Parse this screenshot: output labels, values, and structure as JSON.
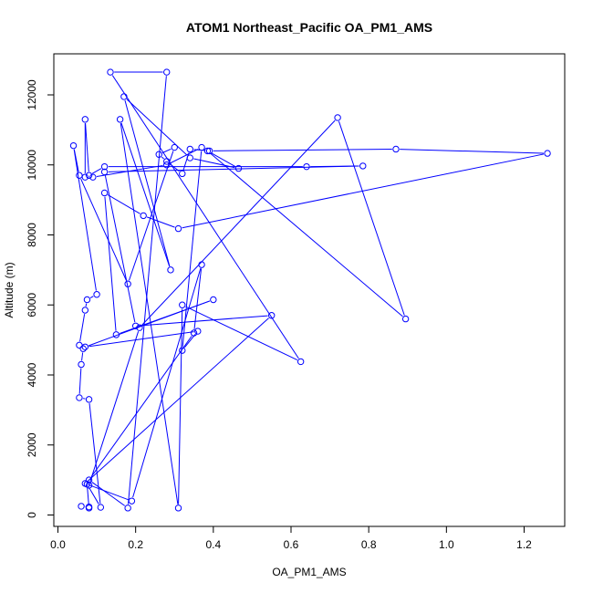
{
  "chart_data": {
    "type": "line",
    "title": "ATOM1 Northeast_Pacific OA_PM1_AMS",
    "xlabel": "OA_PM1_AMS",
    "ylabel": "Altitude (m)",
    "xlim": [
      0.0,
      1.3
    ],
    "ylim": [
      0,
      12700
    ],
    "x_ticks": [
      0.0,
      0.2,
      0.4,
      0.6,
      0.8,
      1.0,
      1.2
    ],
    "x_tick_labels": [
      "0.0",
      "0.2",
      "0.4",
      "0.6",
      "0.8",
      "1.0",
      "1.2"
    ],
    "y_ticks": [
      0,
      2000,
      4000,
      6000,
      8000,
      10000,
      12000
    ],
    "y_tick_labels": [
      "0",
      "2000",
      "4000",
      "6000",
      "8000",
      "10000",
      "12000"
    ],
    "grid": false,
    "series": [
      {
        "color": "#0000ff",
        "marker": "open-circle",
        "points": [
          [
            0.08,
            230
          ],
          [
            0.06,
            250
          ],
          [
            0.08,
            200
          ],
          [
            0.075,
            880
          ],
          [
            0.11,
            220
          ],
          [
            0.08,
            3300
          ],
          [
            0.055,
            3350
          ],
          [
            0.06,
            4300
          ],
          [
            0.065,
            4750
          ],
          [
            0.055,
            4850
          ],
          [
            0.07,
            5850
          ],
          [
            0.075,
            6150
          ],
          [
            0.1,
            6300
          ],
          [
            0.04,
            10550
          ],
          [
            0.055,
            9700
          ],
          [
            0.18,
            6600
          ],
          [
            0.3,
            10500
          ],
          [
            0.26,
            10300
          ],
          [
            0.28,
            10100
          ],
          [
            0.32,
            9750
          ],
          [
            0.34,
            10450
          ],
          [
            0.39,
            10400
          ],
          [
            0.87,
            10450
          ],
          [
            1.26,
            10330
          ],
          [
            0.31,
            8180
          ],
          [
            0.22,
            8550
          ],
          [
            0.12,
            9200
          ],
          [
            0.15,
            5150
          ],
          [
            0.4,
            6150
          ],
          [
            0.07,
            4800
          ],
          [
            0.36,
            5250
          ],
          [
            0.32,
            4700
          ],
          [
            0.37,
            10500
          ],
          [
            0.28,
            10000
          ],
          [
            0.09,
            9650
          ],
          [
            0.07,
            9650
          ],
          [
            0.07,
            11300
          ],
          [
            0.08,
            9700
          ],
          [
            0.12,
            9950
          ],
          [
            0.64,
            9950
          ],
          [
            0.785,
            9970
          ],
          [
            0.12,
            9800
          ],
          [
            0.2,
            5400
          ],
          [
            0.55,
            5700
          ],
          [
            0.07,
            900
          ],
          [
            0.19,
            400
          ],
          [
            0.37,
            7150
          ],
          [
            0.35,
            5200
          ],
          [
            0.08,
            1000
          ],
          [
            0.18,
            200
          ],
          [
            0.28,
            12650
          ],
          [
            0.135,
            12650
          ],
          [
            0.625,
            4380
          ],
          [
            0.32,
            6000
          ],
          [
            0.31,
            200
          ],
          [
            0.16,
            11300
          ],
          [
            0.29,
            7000
          ],
          [
            0.17,
            11950
          ],
          [
            0.34,
            10200
          ],
          [
            0.465,
            9900
          ],
          [
            0.385,
            10400
          ],
          [
            0.895,
            5600
          ],
          [
            0.72,
            11350
          ],
          [
            0.21,
            5350
          ],
          [
            0.08,
            850
          ]
        ]
      }
    ]
  }
}
